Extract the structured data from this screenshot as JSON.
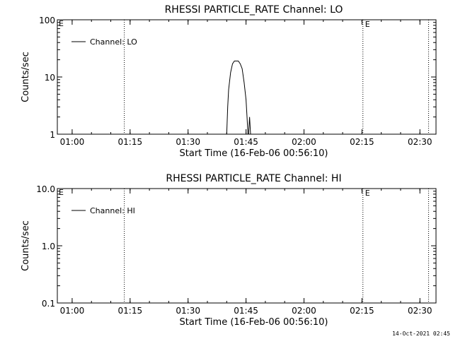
{
  "timestamp": "14-Oct-2021 02:45",
  "chart_data": [
    {
      "type": "line",
      "title": "RHESSI PARTICLE_RATE Channel: LO",
      "xlabel": "Start Time (16-Feb-06 00:56:10)",
      "ylabel": "Counts/sec",
      "yscale": "log",
      "ylim": [
        1,
        100
      ],
      "yticks": [
        {
          "v": 1,
          "label": "1"
        },
        {
          "v": 10,
          "label": "10"
        },
        {
          "v": 100,
          "label": "100"
        }
      ],
      "xlim": [
        "00:56:10",
        "02:34:10"
      ],
      "xticks": [
        "01:00",
        "01:15",
        "01:30",
        "01:45",
        "02:00",
        "02:15",
        "02:30"
      ],
      "vlines": [
        {
          "x": "01:13:30",
          "label": ""
        },
        {
          "x": "02:15:15",
          "label": "E"
        },
        {
          "x": "02:32:15",
          "label": ""
        }
      ],
      "left_marker": "E",
      "legend": {
        "position": "top-left",
        "entries": [
          "Channel: LO"
        ]
      },
      "grid": false,
      "series": [
        {
          "name": "Channel: LO",
          "points": [
            [
              "01:40:00",
              1
            ],
            [
              "01:40:15",
              3
            ],
            [
              "01:40:30",
              6
            ],
            [
              "01:41:00",
              12
            ],
            [
              "01:41:30",
              17
            ],
            [
              "01:42:00",
              19
            ],
            [
              "01:43:00",
              19
            ],
            [
              "01:43:30",
              17
            ],
            [
              "01:44:00",
              14
            ],
            [
              "01:44:30",
              8
            ],
            [
              "01:45:00",
              4
            ],
            [
              "01:45:15",
              2
            ],
            [
              "01:45:30",
              1
            ]
          ]
        },
        {
          "name": "Channel: LO",
          "points": [
            [
              "01:45:40",
              1
            ],
            [
              "01:45:55",
              2
            ],
            [
              "01:46:10",
              1
            ]
          ]
        }
      ]
    },
    {
      "type": "line",
      "title": "RHESSI PARTICLE_RATE Channel: HI",
      "xlabel": "Start Time (16-Feb-06 00:56:10)",
      "ylabel": "Counts/sec",
      "yscale": "log",
      "ylim": [
        0.1,
        10
      ],
      "yticks": [
        {
          "v": 0.1,
          "label": "0.1"
        },
        {
          "v": 1,
          "label": "1.0"
        },
        {
          "v": 10,
          "label": "10.0"
        }
      ],
      "xlim": [
        "00:56:10",
        "02:34:10"
      ],
      "xticks": [
        "01:00",
        "01:15",
        "01:30",
        "01:45",
        "02:00",
        "02:15",
        "02:30"
      ],
      "vlines": [
        {
          "x": "01:13:30",
          "label": ""
        },
        {
          "x": "02:15:15",
          "label": "E"
        },
        {
          "x": "02:32:15",
          "label": ""
        }
      ],
      "left_marker": "E",
      "legend": {
        "position": "top-left",
        "entries": [
          "Channel: HI"
        ]
      },
      "grid": false,
      "series": []
    }
  ]
}
